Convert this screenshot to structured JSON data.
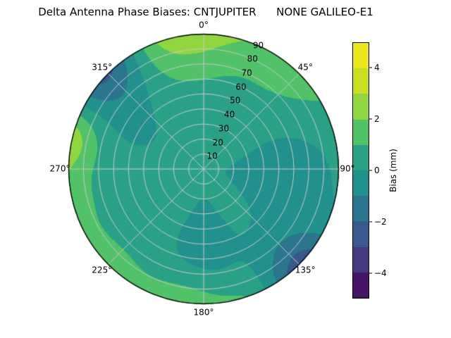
{
  "title": "Delta Antenna Phase Biases: CNTJUPITER      NONE GALILEO-E1",
  "chart_data": {
    "type": "heatmap",
    "projection": "polar",
    "title": "Delta Antenna Phase Biases: CNTJUPITER      NONE GALILEO-E1",
    "units": "mm",
    "radial_max": 90,
    "rlabel_angle_deg": 22.5,
    "angular_ticks": [
      {
        "az": 0,
        "label": "0°"
      },
      {
        "az": 45,
        "label": "45°"
      },
      {
        "az": 90,
        "label": "90°"
      },
      {
        "az": 135,
        "label": "135°"
      },
      {
        "az": 180,
        "label": "180°"
      },
      {
        "az": 225,
        "label": "225°"
      },
      {
        "az": 270,
        "label": "270°"
      },
      {
        "az": 315,
        "label": "315°"
      }
    ],
    "radial_ticks": [
      {
        "r": 10,
        "label": "10"
      },
      {
        "r": 20,
        "label": "20"
      },
      {
        "r": 30,
        "label": "30"
      },
      {
        "r": 40,
        "label": "40"
      },
      {
        "r": 50,
        "label": "50"
      },
      {
        "r": 60,
        "label": "60"
      },
      {
        "r": 70,
        "label": "70"
      },
      {
        "r": 80,
        "label": "80"
      },
      {
        "r": 90,
        "label": "90"
      }
    ],
    "colorbar": {
      "label": "Bias (mm)",
      "min": -5,
      "max": 5,
      "ticks": [
        "−4",
        "−2",
        "0",
        "2",
        "4"
      ],
      "tick_values": [
        -4,
        -2,
        0,
        2,
        4
      ]
    },
    "levels": {
      "min": -5,
      "max": 5,
      "step": 1
    },
    "band_colors": [
      "#461466",
      "#433980",
      "#37598c",
      "#2b758e",
      "#22908c",
      "#2aa186",
      "#51c268",
      "#91d641",
      "#c9e021",
      "#ede51e"
    ],
    "grid_color": "#c9c9c9",
    "outline_color": "#000000",
    "field": {
      "base": 0.5,
      "blobs": [
        {
          "az": 352,
          "r": 102,
          "amp": 2.6,
          "saz": 20,
          "sr": 24
        },
        {
          "az": 40,
          "r": 100,
          "amp": 1.5,
          "saz": 16,
          "sr": 22
        },
        {
          "az": 315,
          "r": 104,
          "amp": -3.6,
          "saz": 12,
          "sr": 22
        },
        {
          "az": 135,
          "r": 104,
          "amp": -3.6,
          "saz": 12,
          "sr": 22
        },
        {
          "az": 283,
          "r": 96,
          "amp": 2.3,
          "saz": 10,
          "sr": 16
        },
        {
          "az": 258,
          "r": 100,
          "amp": 1.2,
          "saz": 14,
          "sr": 18
        },
        {
          "az": 222,
          "r": 100,
          "amp": 1.3,
          "saz": 14,
          "sr": 18
        },
        {
          "az": 188,
          "r": 100,
          "amp": 2.0,
          "saz": 13,
          "sr": 18
        },
        {
          "az": 160,
          "r": 100,
          "amp": 1.0,
          "saz": 10,
          "sr": 16
        },
        {
          "az": 97,
          "r": 50,
          "amp": -1.0,
          "saz": 26,
          "sr": 30
        },
        {
          "az": 180,
          "r": 52,
          "amp": -0.9,
          "saz": 20,
          "sr": 30
        },
        {
          "az": 300,
          "r": 55,
          "amp": -0.6,
          "saz": 20,
          "sr": 26
        }
      ]
    }
  }
}
